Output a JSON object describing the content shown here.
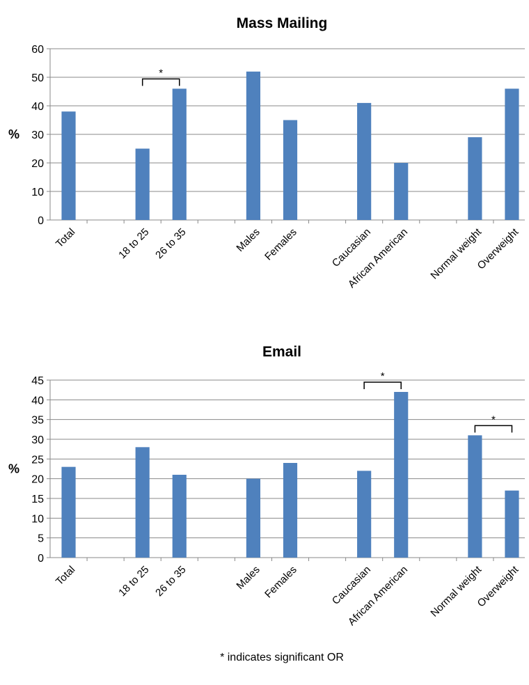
{
  "bar_color": "#4f81bd",
  "footnote": "* indicates significant OR",
  "chart_data": [
    {
      "type": "bar",
      "title": "Mass Mailing",
      "ylabel": "%",
      "ylim": [
        0,
        60
      ],
      "yticks": [
        0,
        10,
        20,
        30,
        40,
        50,
        60
      ],
      "grid": true,
      "categories": [
        "Total",
        "18 to 25",
        "26 to 35",
        "Males",
        "Females",
        "Caucasian",
        "African American",
        "Normal weight",
        "Overweight"
      ],
      "values": [
        38,
        25,
        46,
        52,
        35,
        41,
        20,
        29,
        46
      ],
      "significance": [
        {
          "from": 1,
          "to": 2,
          "label": "*"
        }
      ]
    },
    {
      "type": "bar",
      "title": "Email",
      "ylabel": "%",
      "ylim": [
        0,
        45
      ],
      "yticks": [
        0,
        5,
        10,
        15,
        20,
        25,
        30,
        35,
        40,
        45
      ],
      "grid": true,
      "categories": [
        "Total",
        "18 to 25",
        "26 to 35",
        "Males",
        "Females",
        "Caucasian",
        "African American",
        "Normal weight",
        "Overweight"
      ],
      "values": [
        23,
        28,
        21,
        20,
        24,
        22,
        42,
        31,
        17
      ],
      "significance": [
        {
          "from": 5,
          "to": 6,
          "label": "*"
        },
        {
          "from": 7,
          "to": 8,
          "label": "*"
        }
      ]
    }
  ]
}
